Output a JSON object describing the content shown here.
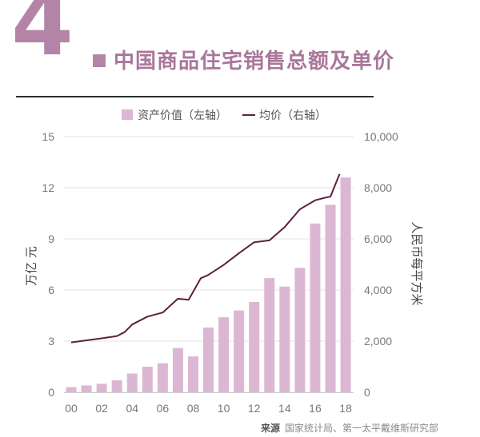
{
  "header": {
    "number": "4",
    "title": "中国商品住宅销售总额及单价"
  },
  "source": {
    "label": "来源",
    "text": "国家统计局、第一太平戴维斯研究部"
  },
  "colors": {
    "bar": "#dcb7d3",
    "line": "#5a2141",
    "accent": "#b484a7"
  },
  "chart_data": {
    "type": "bar",
    "legend": [
      "资产价值（左轴）",
      "均价（右轴）"
    ],
    "legend_position": "top",
    "ylabel_left": "万亿 元",
    "ylabel_right": "人民币每平方米",
    "x": [
      0,
      1,
      2,
      3,
      4,
      5,
      6,
      7,
      8,
      9,
      10,
      11,
      12,
      13,
      14,
      15,
      16,
      17,
      18
    ],
    "x_tick_labels": [
      "00",
      "02",
      "04",
      "06",
      "08",
      "10",
      "12",
      "14",
      "16",
      "18"
    ],
    "x_ticks": [
      0,
      2,
      4,
      6,
      8,
      10,
      12,
      14,
      16,
      18
    ],
    "y_left_ticks": [
      "0",
      "3",
      "6",
      "9",
      "12",
      "15"
    ],
    "y_left_lim": [
      0,
      15
    ],
    "y_right_ticks": [
      "0",
      "2,000",
      "4,000",
      "6,000",
      "8,000",
      "10,000"
    ],
    "y_right_lim": [
      0,
      10000
    ],
    "series": [
      {
        "name": "资产价值（左轴）",
        "type": "bar",
        "axis": "left",
        "values": [
          0.3,
          0.4,
          0.5,
          0.7,
          1.1,
          1.5,
          1.7,
          2.6,
          2.1,
          3.8,
          4.4,
          4.8,
          5.3,
          6.7,
          6.2,
          7.3,
          9.9,
          11.0,
          12.6
        ]
      },
      {
        "name": "均价（右轴）",
        "type": "line",
        "axis": "right",
        "x": [
          0,
          1,
          2,
          3,
          3.5,
          4,
          5,
          6,
          7,
          7.7,
          8.5,
          9,
          10,
          11,
          12,
          13,
          14,
          15,
          16,
          16.7,
          17,
          17.6
        ],
        "values": [
          1950,
          2030,
          2110,
          2200,
          2350,
          2650,
          2960,
          3120,
          3660,
          3620,
          4460,
          4590,
          4980,
          5440,
          5870,
          5940,
          6460,
          7160,
          7510,
          7620,
          7650,
          8540
        ]
      }
    ]
  }
}
